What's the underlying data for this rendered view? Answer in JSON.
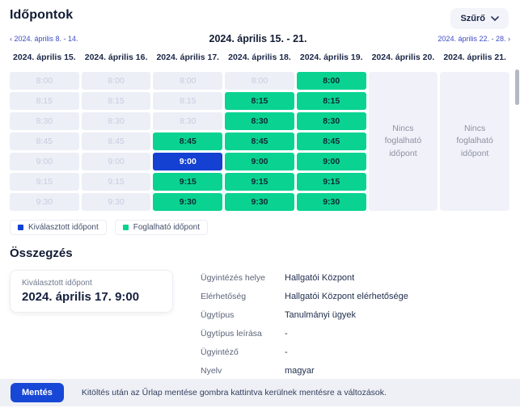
{
  "page": {
    "title": "Időpontok",
    "filter_label": "Szűrő"
  },
  "week_nav": {
    "prev_arrow": "‹",
    "prev": "2024. április 8. - 14.",
    "current": "2024. április 15. - 21.",
    "next": "2024. április 22. - 28.",
    "next_arrow": "›"
  },
  "calendar": {
    "times": [
      "8:00",
      "8:15",
      "8:30",
      "8:45",
      "9:00",
      "9:15",
      "9:30"
    ],
    "no_slots_text": "Nincs foglalható időpont",
    "days": [
      {
        "label": "2024. április 15.",
        "slots": [
          "disabled",
          "disabled",
          "disabled",
          "disabled",
          "disabled",
          "disabled",
          "disabled"
        ]
      },
      {
        "label": "2024. április 16.",
        "slots": [
          "disabled",
          "disabled",
          "disabled",
          "disabled",
          "disabled",
          "disabled",
          "disabled"
        ]
      },
      {
        "label": "2024. április 17.",
        "slots": [
          "disabled",
          "disabled",
          "disabled",
          "available",
          "selected",
          "available",
          "available"
        ]
      },
      {
        "label": "2024. április 18.",
        "slots": [
          "disabled",
          "available",
          "available",
          "available",
          "available",
          "available",
          "available"
        ]
      },
      {
        "label": "2024. április 19.",
        "slots": [
          "available",
          "available",
          "available",
          "available",
          "available",
          "available",
          "available"
        ]
      },
      {
        "label": "2024. április 20.",
        "no_slots": true
      },
      {
        "label": "2024. április 21.",
        "no_slots": true
      }
    ]
  },
  "legend": [
    {
      "key": "selected",
      "label": "Kiválasztott időpont",
      "color": "#1441d2"
    },
    {
      "key": "available",
      "label": "Foglalható időpont",
      "color": "#0ad391"
    }
  ],
  "summary": {
    "heading": "Összegzés",
    "selected_card": {
      "label": "Kiválasztott időpont",
      "value": "2024. április 17. 9:00"
    },
    "fields": [
      {
        "label": "Ügyintézés helye",
        "value": "Hallgatói Központ"
      },
      {
        "label": "Elérhetőség",
        "value": "Hallgatói Központ elérhetősége"
      },
      {
        "label": "Ügytípus",
        "value": "Tanulmányi ügyek"
      },
      {
        "label": "Ügytípus leírása",
        "value": "-"
      },
      {
        "label": "Ügyintéző",
        "value": "-"
      },
      {
        "label": "Nyelv",
        "value": "magyar"
      }
    ]
  },
  "footer": {
    "save_label": "Mentés",
    "note": "Kitöltés után az Űrlap mentése gombra kattintva kerülnek mentésre a változások."
  },
  "colors": {
    "selected_blue": "#1441d2",
    "available_green": "#0ad391",
    "disabled_slot_bg": "#edeff7",
    "link_indigo": "#3e4cc5",
    "footer_bar_bg": "#eef0f6"
  }
}
